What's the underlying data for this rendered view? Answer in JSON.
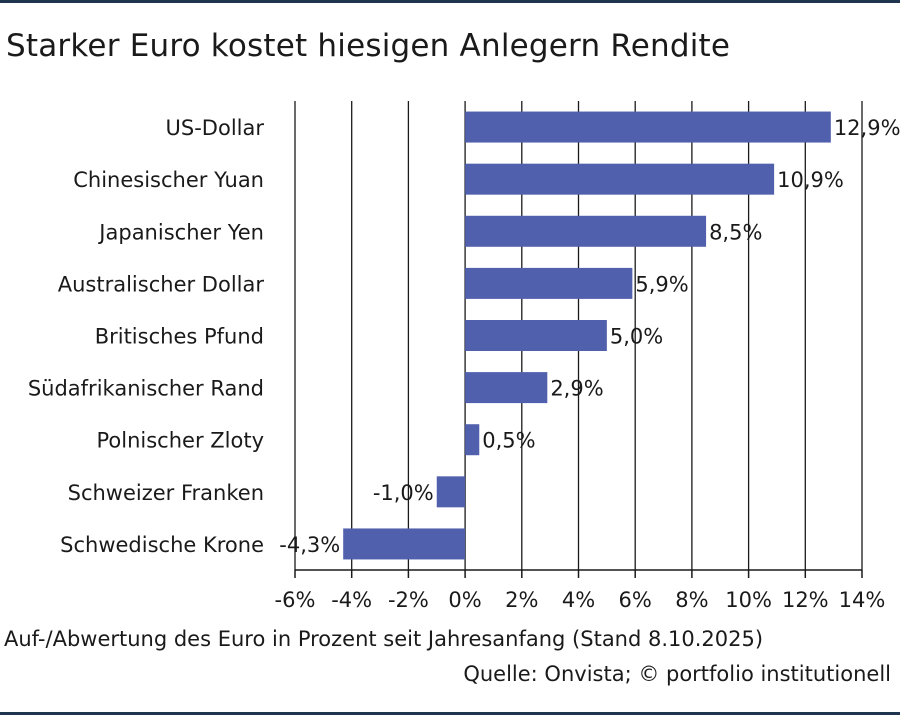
{
  "chart_data": {
    "type": "bar",
    "orientation": "horizontal",
    "title": "Starker Euro kostet hiesigen Anlegern Rendite",
    "xlabel": "Auf-/Abwertung des Euro in Prozent seit Jahresanfang (Stand 8.10.2025)",
    "ylabel": "",
    "categories": [
      "US-Dollar",
      "Chinesischer Yuan",
      "Japanischer Yen",
      "Australischer Dollar",
      "Britisches Pfund",
      "Südafrikanischer Rand",
      "Polnischer Zloty",
      "Schweizer Franken",
      "Schwedische Krone"
    ],
    "values": [
      12.9,
      10.9,
      8.5,
      5.9,
      5.0,
      2.9,
      0.5,
      -1.0,
      -4.3
    ],
    "value_labels": [
      "12,9%",
      "10,9%",
      "8,5%",
      "5,9%",
      "5,0%",
      "2,9%",
      "0,5%",
      "-1,0%",
      "-4,3%"
    ],
    "xlim": [
      -6,
      14
    ],
    "xticks": [
      -6,
      -4,
      -2,
      0,
      2,
      4,
      6,
      8,
      10,
      12,
      14
    ],
    "xtick_labels": [
      "-6%",
      "-4%",
      "-2%",
      "0%",
      "2%",
      "4%",
      "6%",
      "8%",
      "10%",
      "12%",
      "14%"
    ],
    "grid": true,
    "bar_color": "#5060ad",
    "source": "Quelle: Onvista; © portfolio institutionell"
  },
  "colors": {
    "rule": "#1f3550",
    "grid": "#1a1a1a",
    "text": "#1a1a1a"
  }
}
